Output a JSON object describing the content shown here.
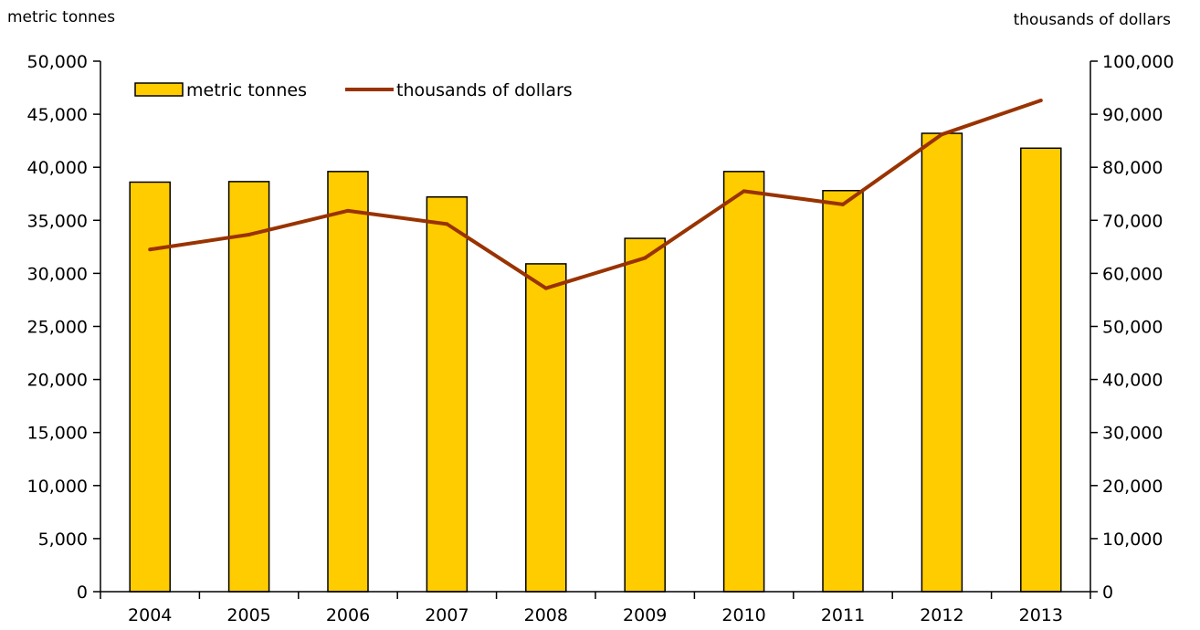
{
  "chart_data": {
    "type": "bar",
    "categories": [
      "2004",
      "2005",
      "2006",
      "2007",
      "2008",
      "2009",
      "2010",
      "2011",
      "2012",
      "2013"
    ],
    "series": [
      {
        "name": "metric tonnes",
        "type": "bar",
        "axis": "left",
        "color": "#FFCC00",
        "values": [
          38600,
          38650,
          39600,
          37200,
          30900,
          33300,
          39600,
          37800,
          43200,
          41800
        ]
      },
      {
        "name": "thousands of dollars",
        "type": "line",
        "axis": "right",
        "color": "#993300",
        "values": [
          64500,
          67300,
          71800,
          69300,
          57200,
          62900,
          75500,
          73000,
          86200,
          92600
        ]
      }
    ],
    "ylabel_left": "metric tonnes",
    "ylabel_right": "thousands of dollars",
    "ylim_left": [
      0,
      50000
    ],
    "ylim_right": [
      0,
      100000
    ],
    "yticks_left": [
      "0",
      "5,000",
      "10,000",
      "15,000",
      "20,000",
      "25,000",
      "30,000",
      "35,000",
      "40,000",
      "45,000",
      "50,000"
    ],
    "yticks_right": [
      "0",
      "10,000",
      "20,000",
      "30,000",
      "40,000",
      "50,000",
      "60,000",
      "70,000",
      "80,000",
      "90,000",
      "100,000"
    ],
    "grid": false,
    "legend_position": "top-left"
  }
}
